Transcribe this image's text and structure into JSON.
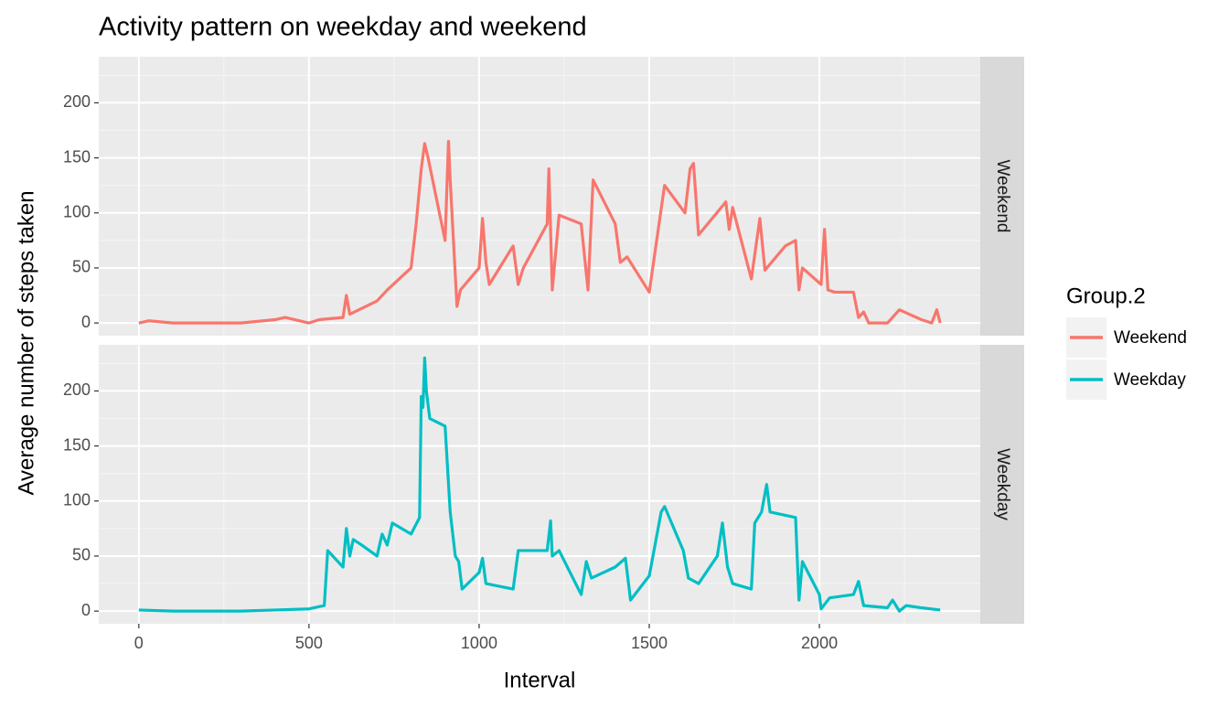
{
  "chart_data": {
    "type": "line",
    "title": "Activity pattern on weekday and weekend",
    "x_label": "Interval",
    "y_label": "Average number of steps taken",
    "legend_title": "Group.2",
    "xlim": [
      -117.75,
      2472.75
    ],
    "xticks": [
      0,
      500,
      1000,
      1500,
      2000
    ],
    "ylim": [
      -11.52,
      241.9
    ],
    "yticks": [
      0,
      50,
      100,
      150,
      200
    ],
    "grid": true,
    "legend": "right",
    "series": [
      {
        "name": "Weekend",
        "color": "#f8766d",
        "x": [
          0,
          30,
          100,
          300,
          400,
          430,
          500,
          530,
          600,
          610,
          620,
          700,
          730,
          800,
          815,
          830,
          840,
          850,
          900,
          910,
          915,
          935,
          945,
          1000,
          1010,
          1020,
          1030,
          1100,
          1115,
          1130,
          1200,
          1205,
          1215,
          1235,
          1300,
          1320,
          1335,
          1400,
          1415,
          1435,
          1500,
          1545,
          1605,
          1620,
          1630,
          1645,
          1725,
          1735,
          1745,
          1800,
          1825,
          1840,
          1900,
          1930,
          1940,
          1950,
          2005,
          2015,
          2025,
          2045,
          2100,
          2115,
          2130,
          2145,
          2200,
          2235,
          2300,
          2330,
          2345,
          2355
        ],
        "values": [
          0,
          2,
          0,
          0,
          3,
          5,
          0,
          3,
          5,
          25,
          8,
          20,
          30,
          50,
          90,
          140,
          163,
          150,
          75,
          165,
          130,
          15,
          30,
          50,
          95,
          55,
          35,
          70,
          35,
          50,
          90,
          140,
          30,
          98,
          90,
          30,
          130,
          90,
          55,
          60,
          28,
          125,
          100,
          140,
          145,
          80,
          110,
          85,
          105,
          40,
          95,
          48,
          70,
          75,
          30,
          50,
          35,
          85,
          30,
          28,
          28,
          5,
          10,
          0,
          0,
          12,
          3,
          0,
          12,
          0
        ]
      },
      {
        "name": "Weekday",
        "color": "#00bfc4",
        "x": [
          0,
          100,
          300,
          400,
          500,
          545,
          555,
          600,
          610,
          620,
          630,
          655,
          700,
          715,
          730,
          745,
          800,
          825,
          830,
          835,
          840,
          845,
          855,
          900,
          915,
          930,
          940,
          950,
          1000,
          1010,
          1020,
          1100,
          1115,
          1145,
          1200,
          1210,
          1215,
          1235,
          1300,
          1315,
          1330,
          1400,
          1430,
          1445,
          1500,
          1535,
          1545,
          1600,
          1615,
          1645,
          1700,
          1715,
          1730,
          1745,
          1800,
          1810,
          1830,
          1845,
          1855,
          1930,
          1940,
          1950,
          2000,
          2005,
          2030,
          2100,
          2115,
          2130,
          2200,
          2215,
          2235,
          2255,
          2300,
          2355
        ],
        "values": [
          1,
          0,
          0,
          1,
          2,
          5,
          55,
          40,
          75,
          50,
          65,
          60,
          50,
          70,
          60,
          80,
          70,
          85,
          195,
          185,
          230,
          200,
          175,
          168,
          90,
          50,
          45,
          20,
          35,
          48,
          25,
          20,
          55,
          55,
          55,
          82,
          50,
          55,
          15,
          45,
          30,
          40,
          48,
          10,
          32,
          90,
          95,
          55,
          30,
          25,
          50,
          80,
          40,
          25,
          20,
          80,
          90,
          115,
          90,
          85,
          10,
          45,
          15,
          2,
          12,
          15,
          27,
          5,
          3,
          10,
          0,
          5,
          3,
          1
        ]
      }
    ]
  }
}
